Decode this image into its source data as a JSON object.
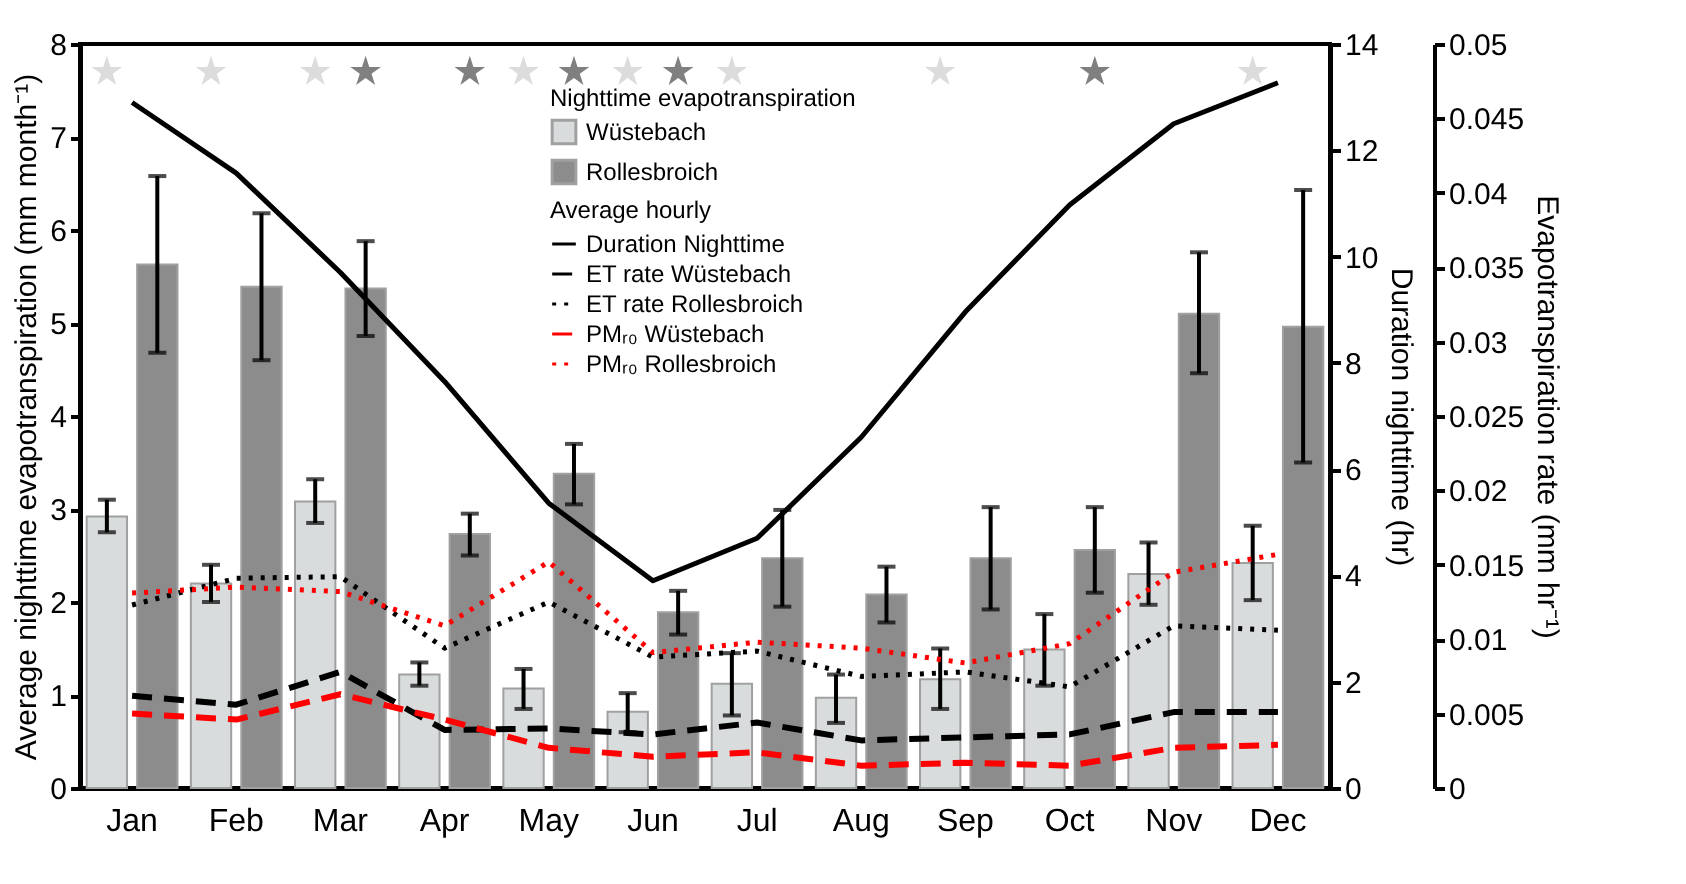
{
  "chart_data": {
    "type": "bar",
    "categories": [
      "Jan",
      "Feb",
      "Mar",
      "Apr",
      "May",
      "Jun",
      "Jul",
      "Aug",
      "Sep",
      "Oct",
      "Nov",
      "Dec"
    ],
    "ylabel": "Average nighttime evapotranspiration (mm month⁻¹)",
    "y2label": "Duration nighttime (hr)",
    "y3label": "Evapotranspiration rate (mm hr⁻¹)",
    "ylim": [
      0,
      8
    ],
    "yticks": [
      0,
      1,
      2,
      3,
      4,
      5,
      6,
      7,
      8
    ],
    "y2lim": [
      0,
      14
    ],
    "y2ticks": [
      0,
      2,
      4,
      6,
      8,
      10,
      12,
      14
    ],
    "y3lim": [
      0,
      0.05
    ],
    "y3ticks": [
      0,
      0.005,
      0.01,
      0.015,
      0.02,
      0.025,
      0.03,
      0.035,
      0.04,
      0.045,
      0.05
    ],
    "legend": "top",
    "legend_title": "Nighttime evapotranspiration",
    "annotations": [
      "Average hourly"
    ],
    "grid": false,
    "series": [
      {
        "name": "Wüstebach",
        "color": "#d9dcdd",
        "values": [
          2.92,
          2.2,
          3.08,
          1.22,
          1.07,
          0.82,
          1.12,
          0.97,
          1.17,
          1.49,
          2.3,
          2.42
        ],
        "errors": [
          [
            2.75,
            3.1
          ],
          [
            2.0,
            2.4
          ],
          [
            2.85,
            3.32
          ],
          [
            1.1,
            1.35
          ],
          [
            0.85,
            1.28
          ],
          [
            0.6,
            1.02
          ],
          [
            0.78,
            1.45
          ],
          [
            0.7,
            1.22
          ],
          [
            0.85,
            1.5
          ],
          [
            1.1,
            1.87
          ],
          [
            1.97,
            2.64
          ],
          [
            2.02,
            2.82
          ]
        ]
      },
      {
        "name": "Rollesbroich",
        "color": "#8c8c8c",
        "values": [
          5.63,
          5.39,
          5.37,
          2.73,
          3.38,
          1.89,
          2.47,
          2.08,
          2.47,
          2.56,
          5.1,
          4.96
        ],
        "errors": [
          [
            4.68,
            6.58
          ],
          [
            4.6,
            6.18
          ],
          [
            4.86,
            5.88
          ],
          [
            2.5,
            2.95
          ],
          [
            3.05,
            3.7
          ],
          [
            1.65,
            2.12
          ],
          [
            1.95,
            2.99
          ],
          [
            1.78,
            2.38
          ],
          [
            1.92,
            3.02
          ],
          [
            2.1,
            3.02
          ],
          [
            4.46,
            5.76
          ],
          [
            3.5,
            6.43
          ]
        ]
      },
      {
        "name": "Duration Nighttime",
        "type": "line",
        "axis": "y2",
        "color": "#000000",
        "line_style": "solid",
        "values": [
          12.9,
          11.57,
          9.7,
          7.65,
          5.36,
          3.9,
          4.7,
          6.6,
          8.96,
          10.97,
          12.5,
          13.27
        ]
      },
      {
        "name": "ET rate Wüstebach",
        "type": "line",
        "axis": "y3",
        "color": "#000000",
        "line_style": "dashed",
        "values": [
          0.0062,
          0.0056,
          0.0078,
          0.0039,
          0.004,
          0.0036,
          0.0044,
          0.0032,
          0.0034,
          0.0036,
          0.0051,
          0.0051
        ]
      },
      {
        "name": "ET rate Rollesbroich",
        "type": "line",
        "axis": "y3",
        "color": "#000000",
        "line_style": "dotted",
        "values": [
          0.0123,
          0.0141,
          0.0142,
          0.0094,
          0.0125,
          0.0088,
          0.0092,
          0.0075,
          0.0078,
          0.0068,
          0.0109,
          0.0106
        ]
      },
      {
        "name": "PMᵣ₀ Wüstebach",
        "type": "line",
        "axis": "y3",
        "color": "#ff0000",
        "line_style": "dashed",
        "values": [
          0.005,
          0.0046,
          0.0063,
          0.0046,
          0.0027,
          0.0021,
          0.0024,
          0.0015,
          0.0017,
          0.0015,
          0.0027,
          0.0029
        ]
      },
      {
        "name": "PMᵣ₀ Rollesbroich",
        "type": "line",
        "axis": "y3",
        "color": "#ff0000",
        "line_style": "dotted",
        "values": [
          0.0131,
          0.0135,
          0.0132,
          0.0109,
          0.0152,
          0.0091,
          0.0098,
          0.0094,
          0.0084,
          0.0097,
          0.0145,
          0.0157
        ]
      },
      {
        "type": "scatter",
        "marker": "star",
        "color": "#dcdcdc",
        "values": [
          7.7,
          7.7,
          7.7,
          null,
          7.7,
          7.7,
          7.7,
          null,
          7.7,
          null,
          null,
          7.7
        ]
      },
      {
        "type": "scatter",
        "marker": "star",
        "color": "#808080",
        "values": [
          null,
          null,
          7.7,
          7.7,
          7.7,
          7.7,
          null,
          null,
          null,
          7.7,
          null,
          null
        ]
      }
    ]
  }
}
